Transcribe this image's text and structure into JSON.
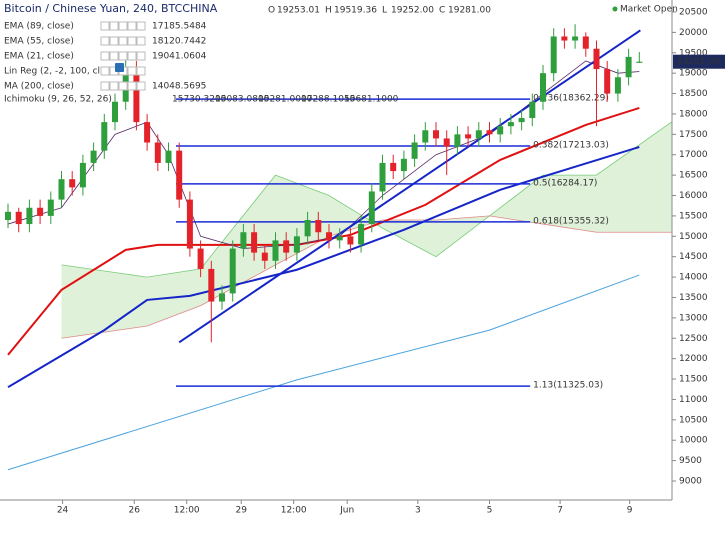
{
  "chart_data": {
    "type": "candlestick",
    "title": "Bitcoin / Chinese Yuan, 240, BTCCHINA",
    "ohlc_header": [
      {
        "key": "O",
        "text": "19253.01"
      },
      {
        "key": "H",
        "text": "19519.36"
      },
      {
        "key": "L",
        "text": "19252.00"
      },
      {
        "key": "C",
        "text": "19281.00"
      }
    ],
    "status": "Market Open",
    "last_price": {
      "value": 19281,
      "label": "19281.00"
    },
    "up_color": "#2f9e3c",
    "down_color": "#e3222a",
    "open": [
      15400,
      15600,
      15300,
      15700,
      15500,
      15900,
      16400,
      16200,
      16800,
      17100,
      17800,
      18300,
      19100,
      17800,
      17300,
      16800,
      17100,
      15900,
      14700,
      14200,
      13400,
      13600,
      14700,
      15100,
      14600,
      14400,
      14900,
      14600,
      15000,
      15400,
      15100,
      14900,
      15000,
      14800,
      15300,
      16100,
      16800,
      16600,
      16900,
      17300,
      17600,
      17400,
      17200,
      17500,
      17400,
      17600,
      17500,
      17700,
      17800,
      17900,
      18300,
      19000,
      19900,
      19800,
      19900,
      19600,
      19100,
      18500,
      18900,
      19253.01
    ],
    "high": [
      15800,
      15700,
      15900,
      15900,
      16100,
      16600,
      16600,
      17000,
      17300,
      18000,
      18500,
      19400,
      19300,
      18000,
      17500,
      17300,
      17300,
      16100,
      14900,
      14400,
      13800,
      14900,
      15300,
      15300,
      14800,
      15100,
      15100,
      15200,
      15600,
      15600,
      15300,
      15200,
      15200,
      15500,
      16300,
      17000,
      17000,
      17100,
      17500,
      17800,
      17800,
      17600,
      17700,
      17700,
      17800,
      17800,
      17900,
      18000,
      18100,
      18500,
      19200,
      20100,
      20100,
      20200,
      20000,
      19800,
      19300,
      19100,
      19600,
      19519.36
    ],
    "low": [
      15200,
      15100,
      15100,
      15300,
      15300,
      15700,
      16000,
      16000,
      16600,
      16900,
      17600,
      18100,
      17600,
      17100,
      16600,
      16600,
      15700,
      14500,
      14000,
      12400,
      13200,
      13400,
      14500,
      14400,
      14200,
      14200,
      14400,
      14400,
      14800,
      14900,
      14700,
      14700,
      14600,
      14600,
      15100,
      15900,
      16400,
      16400,
      16700,
      17100,
      17200,
      16500,
      17000,
      17200,
      17200,
      17300,
      17300,
      17500,
      17600,
      17700,
      18100,
      18800,
      19600,
      19600,
      19400,
      17700,
      18300,
      18300,
      18700,
      19252
    ],
    "close": [
      15600,
      15300,
      15700,
      15500,
      15900,
      16400,
      16200,
      16800,
      17100,
      17800,
      18300,
      19100,
      17800,
      17300,
      16800,
      17100,
      15900,
      14700,
      14200,
      13400,
      13600,
      14700,
      15100,
      14600,
      14400,
      14900,
      14600,
      15000,
      15400,
      15100,
      14900,
      15000,
      14800,
      15300,
      16100,
      16800,
      16600,
      16900,
      17300,
      17600,
      17400,
      17200,
      17500,
      17400,
      17600,
      17500,
      17700,
      17800,
      17900,
      18300,
      19000,
      19900,
      19800,
      19900,
      19600,
      19100,
      18500,
      18900,
      19400,
      19281
    ],
    "lines": [
      {
        "name": "EMA (89, close)",
        "value_label": "17185.5484",
        "color": "#1525c8",
        "width": 2,
        "x": [
          0,
          9,
          13,
          17,
          27,
          37,
          46,
          59
        ],
        "values": [
          11300,
          12700,
          13440,
          13540,
          14180,
          15160,
          16140,
          17190
        ]
      },
      {
        "name": "EMA (55, close)",
        "value_label": "18120.7442",
        "color": "#e01010",
        "width": 2,
        "x": [
          0,
          5,
          11,
          14,
          27,
          32,
          39,
          46,
          54,
          59
        ],
        "values": [
          12093,
          13686,
          14667,
          14789,
          14789,
          15034,
          15770,
          16873,
          17730,
          18147
        ]
      },
      {
        "name": "EMA (21, close)",
        "value_label": "19041.0604",
        "color": "#5a2a6a",
        "width": 0.8,
        "x": [
          0,
          5,
          10,
          13,
          15,
          18,
          22,
          27,
          31,
          35,
          40,
          45,
          50,
          54,
          57,
          59
        ],
        "values": [
          15300,
          15700,
          17500,
          17800,
          17000,
          15000,
          14700,
          14800,
          15000,
          16000,
          17000,
          17500,
          18500,
          19300,
          19000,
          19040
        ]
      },
      {
        "name": "MA (200, close)",
        "value_label": "14048.5695",
        "color": "#4aa3df",
        "width": 1,
        "x": [
          0,
          27,
          45,
          59
        ],
        "values": [
          9275,
          11480,
          12700,
          14050
        ]
      }
    ],
    "lin_reg": {
      "name": "Lin Reg (2, -2, 100, close)"
    },
    "ichimoku": {
      "name": "Ichimoku (9, 26, 52, 26)",
      "value_labels": [
        "15730.3200",
        "15083.0800",
        "15281.0000",
        "17288.1050",
        "15681.1000"
      ],
      "x": [
        5,
        13,
        18,
        25,
        30,
        35,
        40,
        45,
        50,
        55,
        62
      ],
      "span_a": [
        14300,
        14000,
        14200,
        16500,
        16000,
        15200,
        14500,
        15500,
        16500,
        16500,
        17800
      ],
      "span_b": [
        12500,
        12800,
        13300,
        14300,
        15000,
        15400,
        15400,
        15500,
        15300,
        15100,
        15100
      ]
    },
    "trendline": {
      "x": [
        16,
        59.1
      ],
      "values": [
        12400,
        20050
      ],
      "color": "#1525c8"
    },
    "fib": {
      "x_range": [
        15.7,
        48.8
      ],
      "color": "#1a2bd8",
      "levels": [
        {
          "price": 18362.29,
          "label": "0.236(18362.29)"
        },
        {
          "price": 17213.03,
          "label": "0.382(17213.03)"
        },
        {
          "price": 16284.17,
          "label": "0.5(16284.17)"
        },
        {
          "price": 15355.32,
          "label": "0.618(15355.32)"
        },
        {
          "price": 11325.03,
          "label": "1.13(11325.03)"
        }
      ]
    },
    "ylim": [
      9000,
      20500
    ],
    "yticks": [
      9000,
      9500,
      10000,
      10500,
      11000,
      11500,
      12000,
      12500,
      13000,
      13500,
      14000,
      14500,
      15000,
      15500,
      16000,
      16500,
      17000,
      17500,
      18000,
      18500,
      19000,
      19500,
      20000,
      20500
    ],
    "xticks": [
      {
        "value": 5.1,
        "label": "24"
      },
      {
        "value": 11.8,
        "label": "26"
      },
      {
        "value": 16.7,
        "label": "12:00"
      },
      {
        "value": 21.8,
        "label": "29"
      },
      {
        "value": 26.7,
        "label": "12:00"
      },
      {
        "value": 31.7,
        "label": "Jun"
      },
      {
        "value": 38.3,
        "label": "3"
      },
      {
        "value": 45,
        "label": "5"
      },
      {
        "value": 51.6,
        "label": "7"
      },
      {
        "value": 58.1,
        "label": "9"
      }
    ],
    "grid": false
  }
}
